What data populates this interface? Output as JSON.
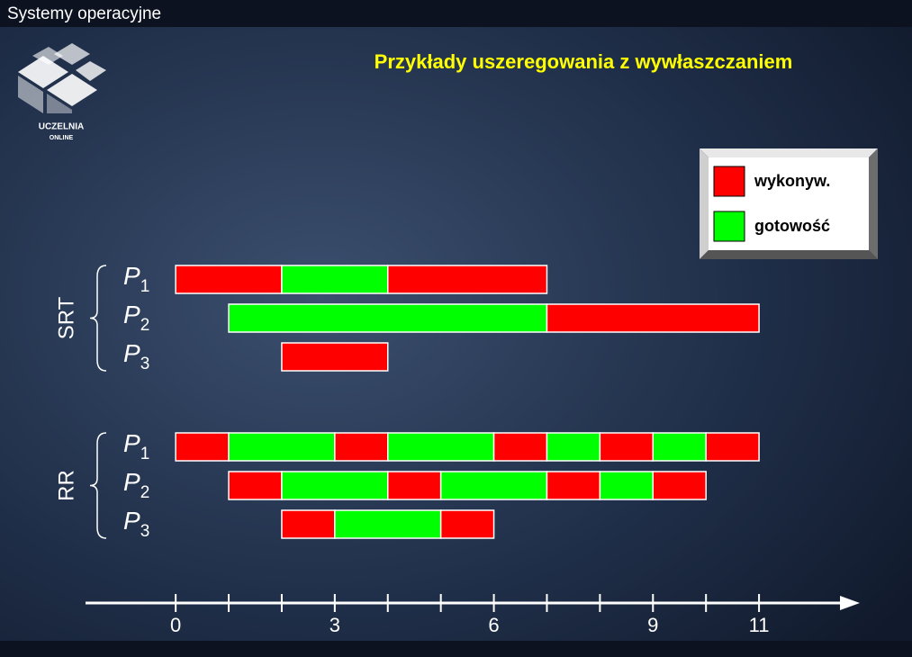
{
  "header": {
    "course": "Systemy operacyjne",
    "logo_line1": "UCZELNIA",
    "logo_line2": "ONLINE"
  },
  "chart_data": {
    "type": "gantt",
    "title": "Przykłady uszeregowania z wywłaszczaniem",
    "series": [
      {
        "name": "wykonyw.",
        "color": "#ff0000"
      },
      {
        "name": "gotowość",
        "color": "#00ff00"
      }
    ],
    "xlim": [
      -1.7,
      12.9
    ],
    "xticks": [
      0,
      3,
      6,
      9,
      11
    ],
    "minor_xticks": [
      1,
      2,
      4,
      5,
      7,
      8,
      10
    ],
    "groups": [
      {
        "name": "SRT",
        "rows": [
          {
            "letter": "P",
            "sub": "1",
            "segments": [
              {
                "start": 0,
                "end": 2,
                "series": 0
              },
              {
                "start": 2,
                "end": 4,
                "series": 1
              },
              {
                "start": 4,
                "end": 7,
                "series": 0
              }
            ]
          },
          {
            "letter": "P",
            "sub": "2",
            "segments": [
              {
                "start": 1,
                "end": 7,
                "series": 1
              },
              {
                "start": 7,
                "end": 11,
                "series": 0
              }
            ]
          },
          {
            "letter": "P",
            "sub": "3",
            "segments": [
              {
                "start": 2,
                "end": 4,
                "series": 0
              }
            ]
          }
        ]
      },
      {
        "name": "RR",
        "rows": [
          {
            "letter": "P",
            "sub": "1",
            "segments": [
              {
                "start": 0,
                "end": 1,
                "series": 0
              },
              {
                "start": 1,
                "end": 3,
                "series": 1
              },
              {
                "start": 3,
                "end": 4,
                "series": 0
              },
              {
                "start": 4,
                "end": 6,
                "series": 1
              },
              {
                "start": 6,
                "end": 7,
                "series": 0
              },
              {
                "start": 7,
                "end": 8,
                "series": 1
              },
              {
                "start": 8,
                "end": 9,
                "series": 0
              },
              {
                "start": 9,
                "end": 10,
                "series": 1
              },
              {
                "start": 10,
                "end": 11,
                "series": 0
              }
            ]
          },
          {
            "letter": "P",
            "sub": "2",
            "segments": [
              {
                "start": 1,
                "end": 2,
                "series": 0
              },
              {
                "start": 2,
                "end": 4,
                "series": 1
              },
              {
                "start": 4,
                "end": 5,
                "series": 0
              },
              {
                "start": 5,
                "end": 7,
                "series": 1
              },
              {
                "start": 7,
                "end": 8,
                "series": 0
              },
              {
                "start": 8,
                "end": 9,
                "series": 1
              },
              {
                "start": 9,
                "end": 10,
                "series": 0
              }
            ]
          },
          {
            "letter": "P",
            "sub": "3",
            "segments": [
              {
                "start": 2,
                "end": 3,
                "series": 0
              },
              {
                "start": 3,
                "end": 5,
                "series": 1
              },
              {
                "start": 5,
                "end": 6,
                "series": 0
              }
            ]
          }
        ]
      }
    ]
  }
}
